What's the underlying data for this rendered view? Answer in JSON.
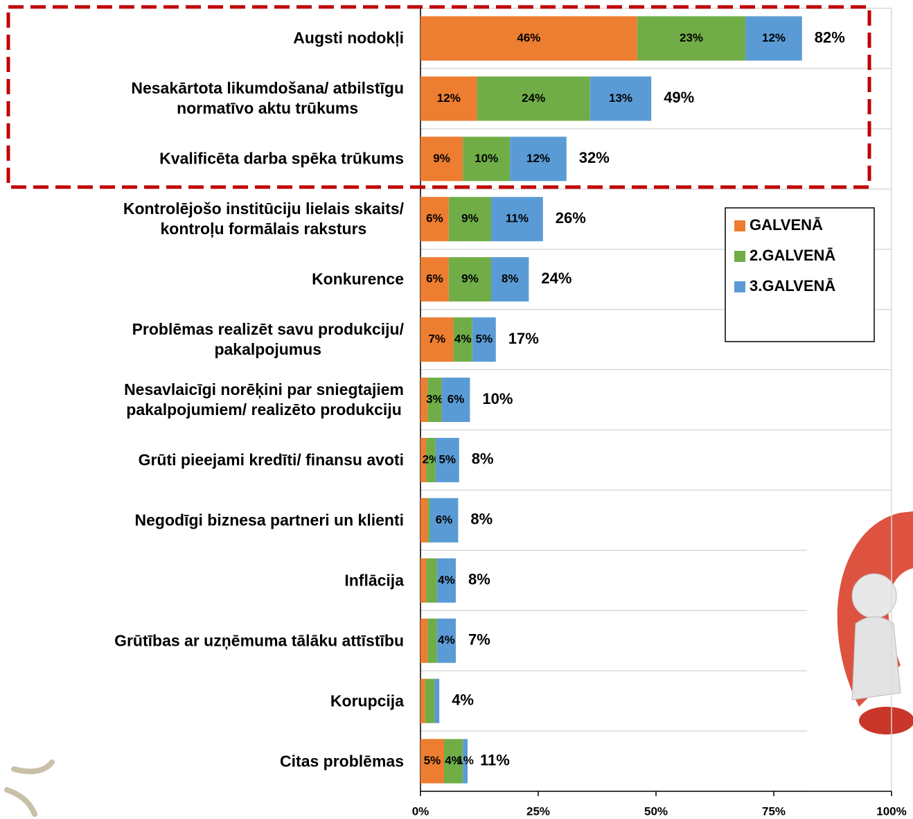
{
  "chart_data": {
    "type": "stacked-barh",
    "categories": [
      "Augsti nodokļi",
      "Nesakārtota likumdošana/ atbilstīgu\nnormatīvo aktu trūkums",
      "Kvalificēta darba spēka trūkums",
      "Kontrolējošo institūciju lielais skaits/\nkontroļu formālais raksturs",
      "Konkurence",
      "Problēmas realizēt savu produkciju/\npakalpojumus",
      "Nesavlaicīgi norēķini par sniegtajiem\npakalpojumiem/ realizēto produkciju",
      "Grūti pieejami kredīti/ finansu avoti",
      "Negodīgi biznesa partneri un klienti",
      "Inflācija",
      "Grūtības ar uzņēmuma tālāku attīstību",
      "Korupcija",
      "Citas problēmas"
    ],
    "series": [
      {
        "name": "GALVENĀ",
        "color": "#ed7d31",
        "values": [
          46,
          12,
          9,
          6,
          6,
          7,
          1.5,
          1.2,
          1.5,
          1.2,
          1.5,
          1,
          5
        ],
        "value_labels": [
          "46%",
          "12%",
          "9%",
          "6%",
          "6%",
          "7%",
          null,
          null,
          null,
          null,
          null,
          null,
          "5%"
        ]
      },
      {
        "name": "2.GALVENĀ",
        "color": "#70ad47",
        "values": [
          23,
          24,
          10,
          9,
          9,
          4,
          3,
          2,
          0.5,
          2.3,
          2,
          2,
          4
        ],
        "value_labels": [
          "23%",
          "24%",
          "10%",
          "9%",
          "9%",
          "4%",
          "3%",
          "2%",
          null,
          null,
          null,
          null,
          "4%"
        ]
      },
      {
        "name": "3.GALVENĀ",
        "color": "#5b9bd5",
        "values": [
          12,
          13,
          12,
          11,
          8,
          5,
          6,
          5,
          6,
          4,
          4,
          1,
          1
        ],
        "value_labels": [
          "12%",
          "13%",
          "12%",
          "11%",
          "8%",
          "5%",
          "6%",
          "5%",
          "6%",
          "4%",
          "4%",
          null,
          "1%"
        ]
      }
    ],
    "total_labels": [
      "82%",
      "49%",
      "32%",
      "26%",
      "24%",
      "17%",
      "10%",
      "8%",
      "8%",
      "8%",
      "7%",
      "4%",
      "11%"
    ],
    "xlim": [
      0,
      100
    ],
    "xticks": [
      {
        "value": 0,
        "label": "0%"
      },
      {
        "value": 25,
        "label": "25%"
      },
      {
        "value": 50,
        "label": "50%"
      },
      {
        "value": 75,
        "label": "75%"
      },
      {
        "value": 100,
        "label": "100%"
      }
    ],
    "legend": "right"
  }
}
